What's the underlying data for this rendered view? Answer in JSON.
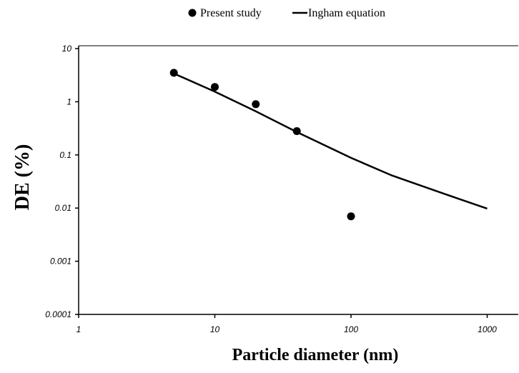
{
  "chart_data": {
    "type": "scatter",
    "title": "",
    "xlabel": "Particle diameter (nm)",
    "ylabel": "DE (%)",
    "x_scale": "log",
    "y_scale": "log",
    "xlim": [
      1,
      1000
    ],
    "ylim": [
      0.0001,
      10
    ],
    "x_ticks": [
      "1",
      "10",
      "100",
      "1000"
    ],
    "y_ticks": [
      "0.0001",
      "0.001",
      "0.01",
      "0.1",
      "1",
      "10"
    ],
    "grid": false,
    "legend_position": "top-center",
    "series": [
      {
        "name": "Present study",
        "kind": "scatter",
        "color": "#000000",
        "x": [
          5,
          10,
          20,
          40,
          100
        ],
        "y": [
          3.5,
          1.9,
          0.9,
          0.28,
          0.007
        ]
      },
      {
        "name": "Ingham equation",
        "kind": "line",
        "color": "#000000",
        "x": [
          5,
          10,
          20,
          40,
          100,
          200,
          500,
          1000
        ],
        "y": [
          3.4,
          1.55,
          0.66,
          0.27,
          0.088,
          0.041,
          0.018,
          0.0098
        ]
      }
    ]
  }
}
